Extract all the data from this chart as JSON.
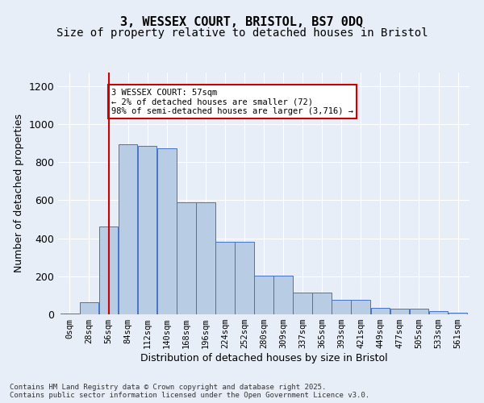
{
  "title_line1": "3, WESSEX COURT, BRISTOL, BS7 0DQ",
  "title_line2": "Size of property relative to detached houses in Bristol",
  "xlabel": "Distribution of detached houses by size in Bristol",
  "ylabel": "Number of detached properties",
  "categories": [
    "0sqm",
    "28sqm",
    "56sqm",
    "84sqm",
    "112sqm",
    "140sqm",
    "168sqm",
    "196sqm",
    "224sqm",
    "252sqm",
    "280sqm",
    "309sqm",
    "337sqm",
    "365sqm",
    "393sqm",
    "421sqm",
    "449sqm",
    "477sqm",
    "505sqm",
    "533sqm",
    "561sqm"
  ],
  "bar_heights": [
    5,
    65,
    460,
    895,
    885,
    870,
    590,
    590,
    380,
    380,
    205,
    205,
    115,
    115,
    75,
    75,
    35,
    30,
    30,
    15,
    10
  ],
  "bar_color": "#b8cce4",
  "bar_edge_color": "#4472c4",
  "vline_x_index": 2,
  "vline_color": "#cc0000",
  "annotation_text": "3 WESSEX COURT: 57sqm\n← 2% of detached houses are smaller (72)\n98% of semi-detached houses are larger (3,716) →",
  "annotation_box_color": "#ffffff",
  "annotation_box_edge": "#cc0000",
  "footnote": "Contains HM Land Registry data © Crown copyright and database right 2025.\nContains public sector information licensed under the Open Government Licence v3.0.",
  "background_color": "#e8eef8",
  "ylim": [
    0,
    1270
  ],
  "title_fontsize": 11,
  "subtitle_fontsize": 10,
  "tick_fontsize": 7.5,
  "ylabel_fontsize": 9,
  "xlabel_fontsize": 9
}
